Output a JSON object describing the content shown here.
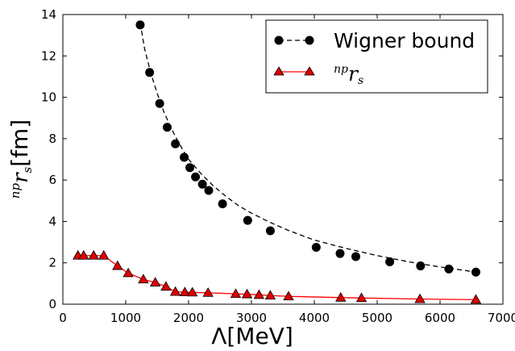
{
  "chart_data": {
    "type": "line",
    "xlabel": "Λ[MeV]",
    "ylabel_prefix": "np",
    "ylabel_main": "r",
    "ylabel_sub": "s",
    "ylabel_unit": "[fm]",
    "xlim": [
      0,
      7000
    ],
    "ylim": [
      0,
      14
    ],
    "xticks": [
      0,
      1000,
      2000,
      3000,
      4000,
      5000,
      6000,
      7000
    ],
    "yticks": [
      0,
      2,
      4,
      6,
      8,
      10,
      12,
      14
    ],
    "grid": false,
    "legend_position": "top-right",
    "series": [
      {
        "name": "Wigner bound",
        "color": "#000000",
        "linestyle": "dashed",
        "marker": "circle",
        "curve_x": [
          1230,
          1300,
          1400,
          1500,
          1600,
          1700,
          1800,
          1900,
          2000,
          2200,
          2400,
          2600,
          2800,
          3000,
          3300,
          3600,
          4000,
          4500,
          5000,
          5500,
          6000,
          6580
        ],
        "curve_y": [
          13.6,
          12.35,
          11.15,
          10.2,
          9.35,
          8.65,
          8.05,
          7.5,
          7.0,
          6.3,
          5.7,
          5.2,
          4.75,
          4.4,
          3.95,
          3.55,
          3.1,
          2.7,
          2.35,
          2.05,
          1.8,
          1.55
        ],
        "points": [
          {
            "x": 1230,
            "y": 13.5
          },
          {
            "x": 1380,
            "y": 11.2
          },
          {
            "x": 1540,
            "y": 9.7
          },
          {
            "x": 1660,
            "y": 8.55
          },
          {
            "x": 1790,
            "y": 7.75
          },
          {
            "x": 1930,
            "y": 7.1
          },
          {
            "x": 2020,
            "y": 6.6
          },
          {
            "x": 2110,
            "y": 6.15
          },
          {
            "x": 2220,
            "y": 5.8
          },
          {
            "x": 2320,
            "y": 5.5
          },
          {
            "x": 2540,
            "y": 4.85
          },
          {
            "x": 2940,
            "y": 4.05
          },
          {
            "x": 3300,
            "y": 3.55
          },
          {
            "x": 4030,
            "y": 2.75
          },
          {
            "x": 4410,
            "y": 2.45
          },
          {
            "x": 4660,
            "y": 2.3
          },
          {
            "x": 5200,
            "y": 2.05
          },
          {
            "x": 5690,
            "y": 1.85
          },
          {
            "x": 6140,
            "y": 1.7
          },
          {
            "x": 6570,
            "y": 1.55
          }
        ]
      },
      {
        "name_prefix": "np",
        "name_main": "r",
        "name_sub": "s",
        "color": "#ff0000",
        "linestyle": "solid",
        "marker": "triangle",
        "points": [
          {
            "x": 240,
            "y": 2.35
          },
          {
            "x": 330,
            "y": 2.35
          },
          {
            "x": 490,
            "y": 2.35
          },
          {
            "x": 650,
            "y": 2.35
          },
          {
            "x": 870,
            "y": 1.85
          },
          {
            "x": 1040,
            "y": 1.5
          },
          {
            "x": 1280,
            "y": 1.2
          },
          {
            "x": 1470,
            "y": 1.05
          },
          {
            "x": 1640,
            "y": 0.85
          },
          {
            "x": 1790,
            "y": 0.6
          },
          {
            "x": 1940,
            "y": 0.58
          },
          {
            "x": 2060,
            "y": 0.57
          },
          {
            "x": 2310,
            "y": 0.55
          },
          {
            "x": 2750,
            "y": 0.5
          },
          {
            "x": 2930,
            "y": 0.48
          },
          {
            "x": 3120,
            "y": 0.45
          },
          {
            "x": 3300,
            "y": 0.42
          },
          {
            "x": 3590,
            "y": 0.38
          },
          {
            "x": 4420,
            "y": 0.32
          },
          {
            "x": 4750,
            "y": 0.3
          },
          {
            "x": 5680,
            "y": 0.25
          },
          {
            "x": 6570,
            "y": 0.22
          }
        ]
      }
    ]
  }
}
